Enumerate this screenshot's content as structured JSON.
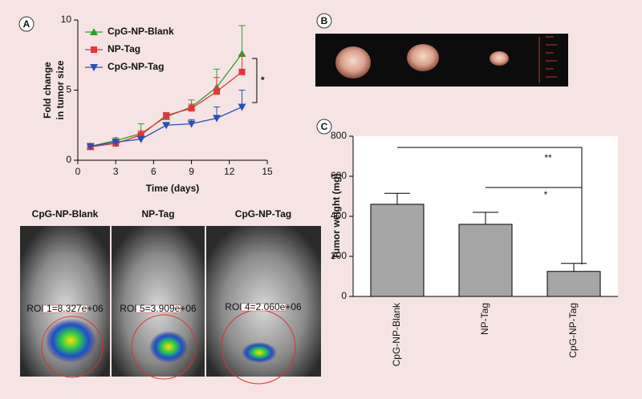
{
  "chart_data": [
    {
      "type": "line",
      "panel": "A",
      "xlabel": "Time (days)",
      "ylabel": [
        "Fold change",
        "in tumor size"
      ],
      "x": [
        1,
        3,
        5,
        7,
        9,
        11,
        13
      ],
      "xlim": [
        0,
        15
      ],
      "xticks": [
        0,
        3,
        6,
        9,
        12,
        15
      ],
      "ylim": [
        0,
        10
      ],
      "yticks": [
        0,
        5,
        10
      ],
      "legend": "upper-left",
      "annotation": "*",
      "series": [
        {
          "name": "CpG-NP-Blank",
          "color": "#2ca02c",
          "marker": "triangle-up",
          "values": [
            1.0,
            1.4,
            1.9,
            3.1,
            3.8,
            5.2,
            7.6
          ],
          "errors": [
            0.1,
            0.2,
            0.7,
            0.2,
            0.5,
            1.3,
            2.0
          ]
        },
        {
          "name": "NP-Tag",
          "color": "#e8333a",
          "marker": "square",
          "values": [
            0.95,
            1.2,
            1.8,
            3.2,
            3.7,
            4.9,
            6.3
          ],
          "errors": [
            0.1,
            0.1,
            0.3,
            0.2,
            0.3,
            1.0,
            1.2
          ]
        },
        {
          "name": "CpG-NP-Tag",
          "color": "#2b4fb5",
          "marker": "triangle-down",
          "values": [
            1.0,
            1.3,
            1.5,
            2.5,
            2.6,
            3.0,
            3.8
          ],
          "errors": [
            0.1,
            0.1,
            0.2,
            0.1,
            0.3,
            0.8,
            1.2
          ]
        }
      ]
    },
    {
      "type": "bar",
      "panel": "C",
      "ylabel": "Tumor weight (mg)",
      "categories": [
        "CpG-NP-Blank",
        "NP-Tag",
        "CpG-NP-Tag"
      ],
      "values": [
        460,
        360,
        125
      ],
      "errors": [
        55,
        60,
        40
      ],
      "color": "#a6a6a6",
      "ylim": [
        0,
        800
      ],
      "yticks": [
        0,
        200,
        400,
        600,
        800
      ],
      "annotations": [
        "**",
        "*"
      ]
    }
  ],
  "photo": {
    "panel": "B"
  },
  "images": {
    "labels": [
      "CpG-NP-Blank",
      "NP-Tag",
      "CpG-NP-Tag"
    ],
    "roi": [
      "ROI 1=8.327e+06",
      "ROI 5=3.909e+06",
      "ROI 4=2.060e+06"
    ]
  }
}
